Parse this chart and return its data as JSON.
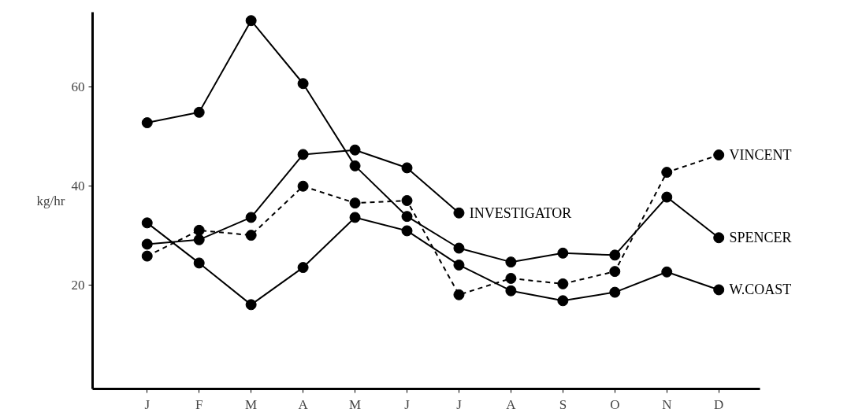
{
  "chart_data": {
    "type": "line",
    "ylabel": "kg/hr",
    "categories": [
      "J",
      "F",
      "M",
      "A",
      "M",
      "J",
      "J",
      "A",
      "S",
      "O",
      "N",
      "D"
    ],
    "ylim": [
      -1,
      75
    ],
    "yticks": [
      20,
      40,
      60
    ],
    "grid": false,
    "legend": false,
    "marker": "circle",
    "series": [
      {
        "name": "SPENCER",
        "color": "#000000",
        "line_style": "solid",
        "values": [
          52.7,
          54.8,
          73.3,
          60.6,
          44.0,
          33.8,
          27.4,
          24.6,
          26.4,
          26.0,
          37.7,
          29.5
        ]
      },
      {
        "name": "W.COAST",
        "color": "#000000",
        "line_style": "solid",
        "values": [
          32.5,
          24.4,
          16.0,
          23.5,
          33.6,
          30.9,
          24.0,
          18.8,
          16.8,
          18.5,
          22.6,
          19.0
        ]
      },
      {
        "name": "INVESTIGATOR",
        "color": "#000000",
        "line_style": "solid",
        "values": [
          28.2,
          29.1,
          33.6,
          46.3,
          47.2,
          43.6,
          34.5,
          null,
          null,
          null,
          null,
          null
        ]
      },
      {
        "name": "VINCENT",
        "color": "#000000",
        "line_style": "dashed",
        "values": [
          25.8,
          31.0,
          30.0,
          39.9,
          36.5,
          37.0,
          18.0,
          21.3,
          20.2,
          22.7,
          42.7,
          46.2
        ]
      }
    ]
  }
}
